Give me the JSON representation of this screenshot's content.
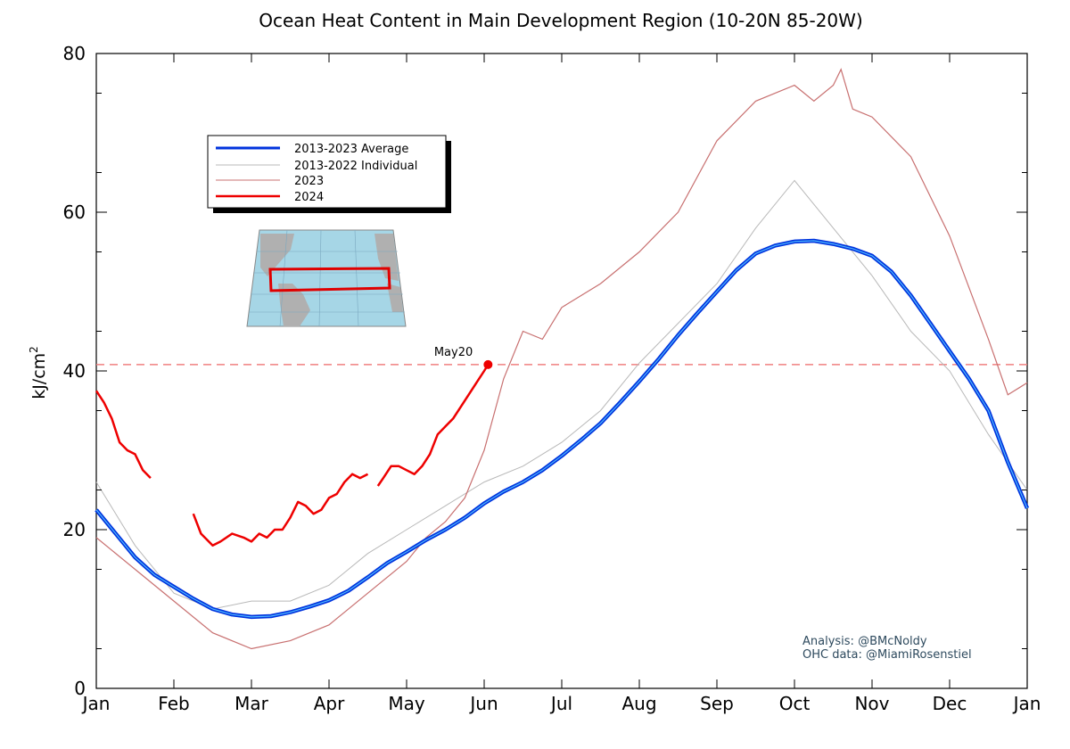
{
  "chart_data": {
    "type": "line",
    "title": "Ocean Heat Content in Main Development Region (10-20N 85-20W)",
    "xlabel": "",
    "ylabel": "kJ/cm",
    "ylabel_sup": "2",
    "ylim": [
      0,
      80
    ],
    "yticks": [
      0,
      20,
      40,
      60,
      80
    ],
    "xlim": [
      0,
      12
    ],
    "xtick_labels": [
      "Jan",
      "Feb",
      "Mar",
      "Apr",
      "May",
      "Jun",
      "Jul",
      "Aug",
      "Sep",
      "Oct",
      "Nov",
      "Dec",
      "Jan"
    ],
    "grid": false,
    "legend_position": "top-left",
    "reference_line": {
      "y": 40.8,
      "style": "dashed",
      "color": "#f08080"
    },
    "annotation": {
      "text": "May20",
      "x": 4.65,
      "y": 40.8
    },
    "credits": [
      "Analysis: @BMcNoldy",
      "OHC data: @MiamiRosenstiel"
    ],
    "inset_map": {
      "description_shown": "map-with-region-box"
    },
    "series": [
      {
        "name": "2013-2023 Average",
        "color": "#0033dd",
        "style": "thick",
        "points": [
          [
            0,
            22.5
          ],
          [
            0.25,
            19.5
          ],
          [
            0.5,
            16.5
          ],
          [
            0.75,
            14.3
          ],
          [
            1,
            12.8
          ],
          [
            1.25,
            11.3
          ],
          [
            1.5,
            10
          ],
          [
            1.75,
            9.3
          ],
          [
            2,
            9
          ],
          [
            2.25,
            9.1
          ],
          [
            2.5,
            9.6
          ],
          [
            2.75,
            10.3
          ],
          [
            3,
            11.1
          ],
          [
            3.25,
            12.3
          ],
          [
            3.5,
            14
          ],
          [
            3.75,
            15.8
          ],
          [
            4,
            17.2
          ],
          [
            4.25,
            18.7
          ],
          [
            4.5,
            20
          ],
          [
            4.75,
            21.5
          ],
          [
            5,
            23.3
          ],
          [
            5.25,
            24.8
          ],
          [
            5.5,
            26
          ],
          [
            5.75,
            27.5
          ],
          [
            6,
            29.3
          ],
          [
            6.25,
            31.3
          ],
          [
            6.5,
            33.4
          ],
          [
            6.75,
            36
          ],
          [
            7,
            38.7
          ],
          [
            7.25,
            41.5
          ],
          [
            7.5,
            44.5
          ],
          [
            7.75,
            47.3
          ],
          [
            8,
            50
          ],
          [
            8.25,
            52.7
          ],
          [
            8.5,
            54.8
          ],
          [
            8.75,
            55.8
          ],
          [
            9,
            56.3
          ],
          [
            9.25,
            56.4
          ],
          [
            9.5,
            56
          ],
          [
            9.75,
            55.4
          ],
          [
            10,
            54.5
          ],
          [
            10.25,
            52.5
          ],
          [
            10.5,
            49.5
          ],
          [
            10.75,
            46
          ],
          [
            11,
            42.5
          ],
          [
            11.25,
            39
          ],
          [
            11.5,
            35
          ],
          [
            11.75,
            28.5
          ],
          [
            12,
            22.7
          ]
        ]
      },
      {
        "name": "2013-2022 Individual",
        "color": "#b8b8b8",
        "style": "thin",
        "points": [
          [
            0,
            26
          ],
          [
            0.5,
            18
          ],
          [
            1,
            12
          ],
          [
            1.5,
            10
          ],
          [
            2,
            11
          ],
          [
            2.5,
            11
          ],
          [
            3,
            13
          ],
          [
            3.5,
            17
          ],
          [
            4,
            20
          ],
          [
            4.5,
            23
          ],
          [
            5,
            26
          ],
          [
            5.5,
            28
          ],
          [
            6,
            31
          ],
          [
            6.5,
            35
          ],
          [
            7,
            41
          ],
          [
            7.5,
            46
          ],
          [
            8,
            51
          ],
          [
            8.5,
            58
          ],
          [
            9,
            64
          ],
          [
            9.5,
            58
          ],
          [
            10,
            52
          ],
          [
            10.5,
            45
          ],
          [
            11,
            40
          ],
          [
            11.5,
            32
          ],
          [
            12,
            25
          ]
        ]
      },
      {
        "name": "2023",
        "color": "#c87070",
        "style": "thin",
        "points": [
          [
            0,
            19
          ],
          [
            0.5,
            15
          ],
          [
            1,
            11
          ],
          [
            1.5,
            7
          ],
          [
            2,
            5
          ],
          [
            2.5,
            6
          ],
          [
            3,
            8
          ],
          [
            3.5,
            12
          ],
          [
            4,
            16
          ],
          [
            4.25,
            19
          ],
          [
            4.5,
            21
          ],
          [
            4.75,
            24
          ],
          [
            5,
            30
          ],
          [
            5.25,
            39
          ],
          [
            5.5,
            45
          ],
          [
            5.75,
            44
          ],
          [
            6,
            48
          ],
          [
            6.5,
            51
          ],
          [
            7,
            55
          ],
          [
            7.5,
            60
          ],
          [
            8,
            69
          ],
          [
            8.5,
            74
          ],
          [
            9,
            76
          ],
          [
            9.25,
            74
          ],
          [
            9.5,
            76
          ],
          [
            9.6,
            78
          ],
          [
            9.75,
            73
          ],
          [
            10,
            72
          ],
          [
            10.5,
            67
          ],
          [
            11,
            57
          ],
          [
            11.5,
            44
          ],
          [
            11.75,
            37
          ],
          [
            12,
            38.5
          ]
        ]
      },
      {
        "name": "2024",
        "color": "#ee0000",
        "style": "medium",
        "segments": [
          [
            [
              0,
              37.5
            ],
            [
              0.1,
              36
            ],
            [
              0.2,
              34
            ],
            [
              0.3,
              31
            ],
            [
              0.4,
              30
            ],
            [
              0.5,
              29.5
            ],
            [
              0.6,
              27.5
            ],
            [
              0.7,
              26.5
            ]
          ],
          [
            [
              1.25,
              22
            ],
            [
              1.35,
              19.5
            ],
            [
              1.5,
              18
            ],
            [
              1.6,
              18.5
            ],
            [
              1.75,
              19.5
            ],
            [
              1.9,
              19
            ],
            [
              2,
              18.5
            ],
            [
              2.1,
              19.5
            ],
            [
              2.2,
              19
            ],
            [
              2.3,
              20
            ],
            [
              2.4,
              20
            ],
            [
              2.5,
              21.5
            ],
            [
              2.6,
              23.5
            ],
            [
              2.7,
              23
            ],
            [
              2.8,
              22
            ],
            [
              2.9,
              22.5
            ],
            [
              3,
              24
            ],
            [
              3.1,
              24.5
            ],
            [
              3.2,
              26
            ],
            [
              3.3,
              27
            ],
            [
              3.4,
              26.5
            ],
            [
              3.5,
              27
            ]
          ],
          [
            [
              3.63,
              25.5
            ],
            [
              3.7,
              26.5
            ],
            [
              3.8,
              28
            ],
            [
              3.9,
              28
            ],
            [
              4,
              27.5
            ],
            [
              4.1,
              27
            ],
            [
              4.2,
              28
            ],
            [
              4.3,
              29.5
            ],
            [
              4.4,
              32
            ],
            [
              4.5,
              33
            ],
            [
              4.6,
              34
            ],
            [
              4.7,
              35.5
            ],
            [
              4.8,
              37
            ],
            [
              4.9,
              38.5
            ],
            [
              5,
              40
            ],
            [
              5.05,
              40.8
            ]
          ]
        ],
        "end_marker": [
          5.05,
          40.8
        ]
      }
    ]
  }
}
